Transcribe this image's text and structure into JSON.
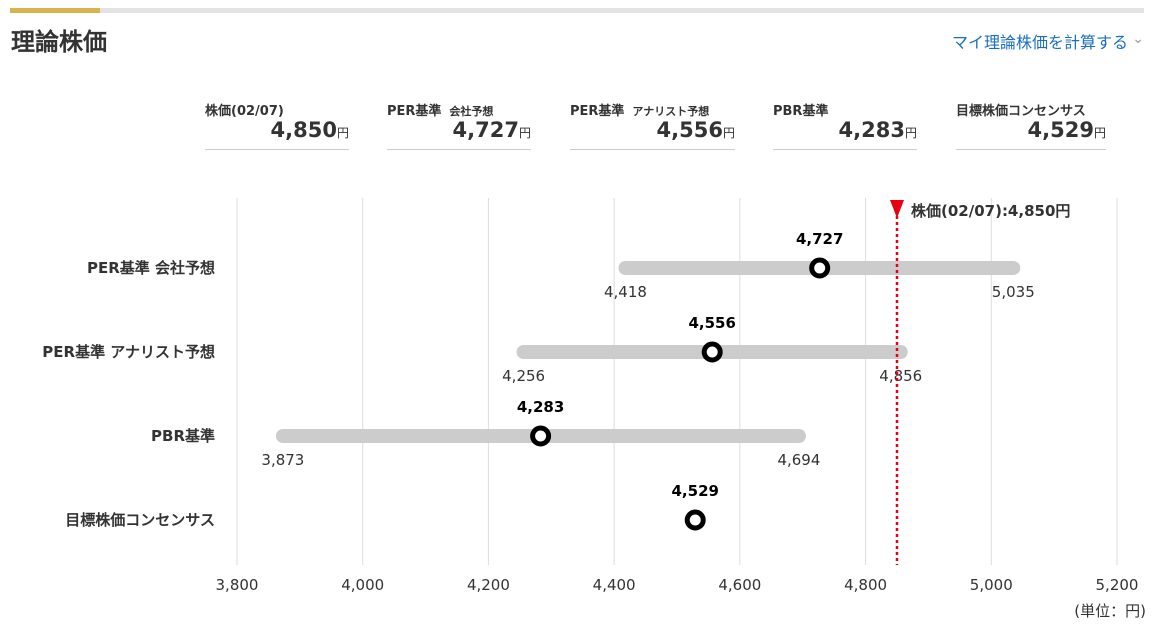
{
  "header": {
    "title": "理論株価",
    "calc_link": "マイ理論株価を計算する"
  },
  "icons": {
    "calc_chevron": "chevron-down-icon",
    "price_marker": "triangle-down-icon"
  },
  "summary": [
    {
      "label": "株価(02/07)",
      "sub": "",
      "value": "4,850",
      "unit": "円"
    },
    {
      "label": "PER基準",
      "sub": "会社予想",
      "value": "4,727",
      "unit": "円"
    },
    {
      "label": "PER基準",
      "sub": "アナリスト予想",
      "value": "4,556",
      "unit": "円"
    },
    {
      "label": "PBR基準",
      "sub": "",
      "value": "4,283",
      "unit": "円"
    },
    {
      "label": "目標株価コンセンサス",
      "sub": "",
      "value": "4,529",
      "unit": "円"
    }
  ],
  "colors": {
    "range_bar": "#cccccc",
    "marker": "#000000",
    "price_line": "#e60012",
    "grid": "#dddddd",
    "accent": "#d7b44d",
    "link": "#1a6fc4"
  },
  "chart_data": {
    "type": "range-dot",
    "unit_label": "(単位：円)",
    "xlim": [
      3800,
      5200
    ],
    "x_ticks": [
      3800,
      4000,
      4200,
      4400,
      4600,
      4800,
      5000,
      5200
    ],
    "x_tick_labels": [
      "3,800",
      "4,000",
      "4,200",
      "4,400",
      "4,600",
      "4,800",
      "5,000",
      "5,200"
    ],
    "current_price": {
      "value": 4850,
      "label": "株価(02/07):4,850円"
    },
    "rows": [
      {
        "name": "PER基準 会社予想",
        "low": 4418,
        "high": 5035,
        "value": 4727,
        "low_label": "4,418",
        "high_label": "5,035",
        "value_label": "4,727"
      },
      {
        "name": "PER基準 アナリスト予想",
        "low": 4256,
        "high": 4856,
        "value": 4556,
        "low_label": "4,256",
        "high_label": "4,856",
        "value_label": "4,556"
      },
      {
        "name": "PBR基準",
        "low": 3873,
        "high": 4694,
        "value": 4283,
        "low_label": "3,873",
        "high_label": "4,694",
        "value_label": "4,283"
      },
      {
        "name": "目標株価コンセンサス",
        "low": null,
        "high": null,
        "value": 4529,
        "low_label": "",
        "high_label": "",
        "value_label": "4,529"
      }
    ]
  }
}
